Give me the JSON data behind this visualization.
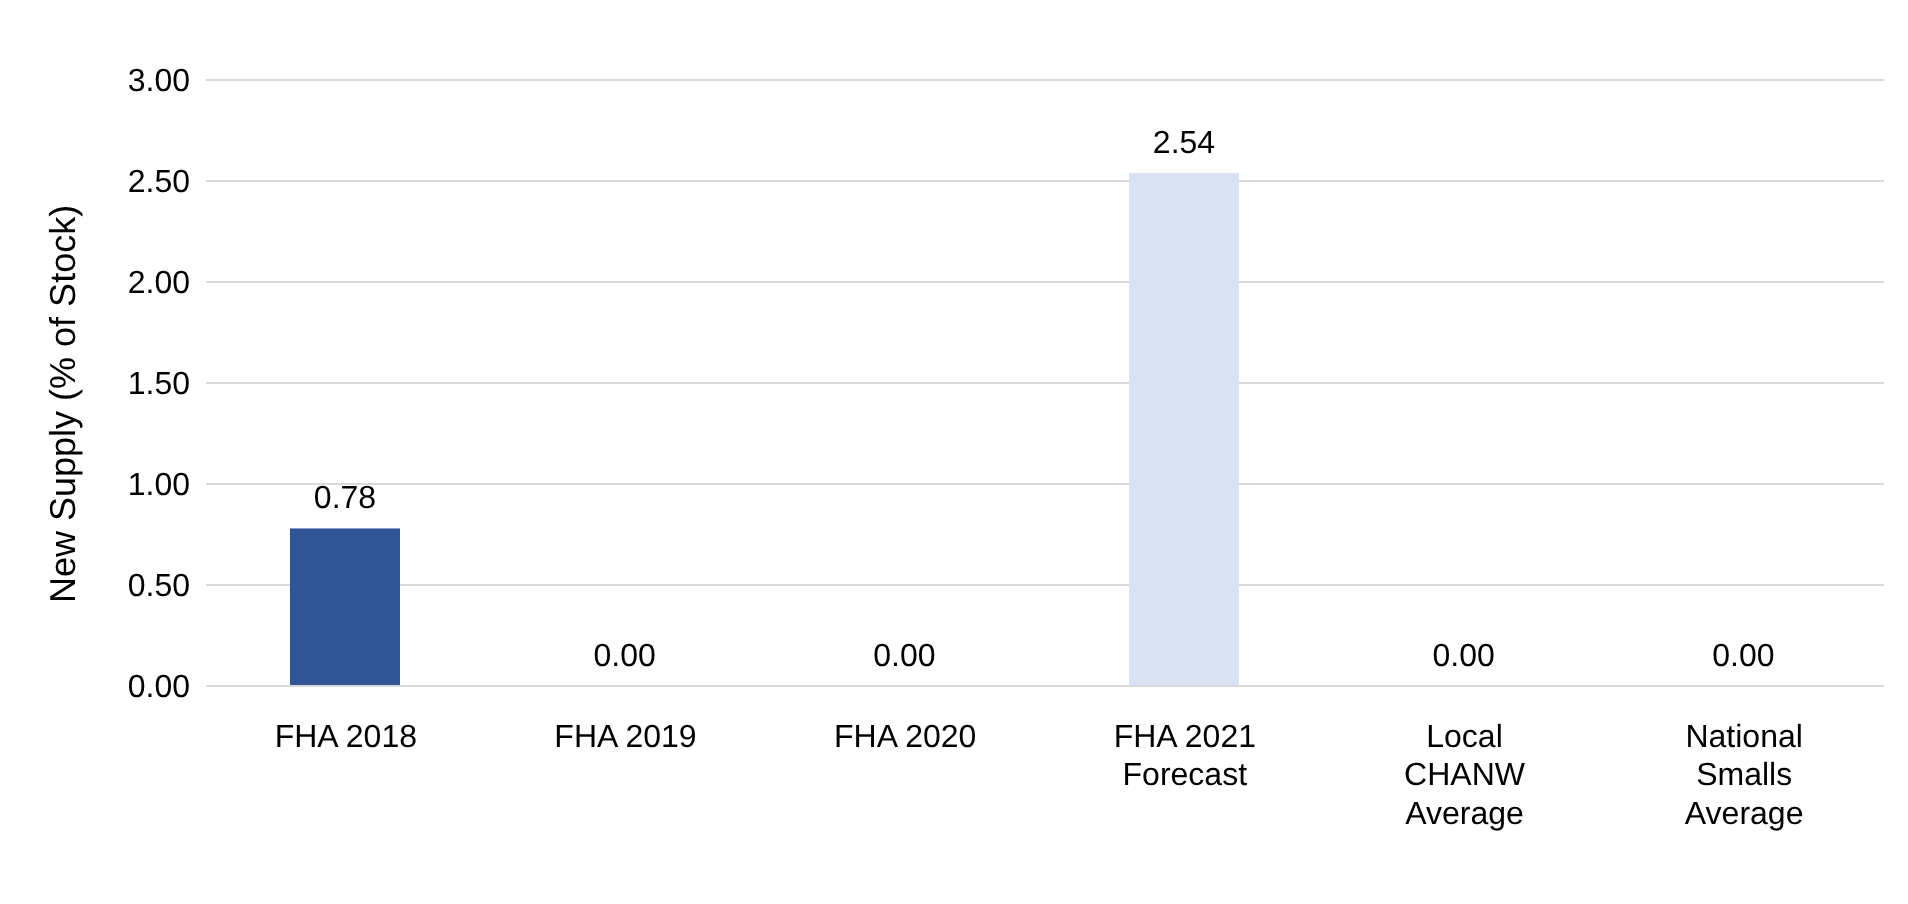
{
  "chart_data": {
    "type": "bar",
    "ylabel": "New Supply (% of Stock)",
    "categories": [
      "FHA 2018",
      "FHA 2019",
      "FHA 2020",
      "FHA 2021 Forecast",
      "Local CHANW Average",
      "National Smalls Average"
    ],
    "values": [
      0.78,
      0,
      0,
      2.54,
      0,
      0
    ],
    "colors": [
      "#2f5597",
      "#2f5597",
      "#2f5597",
      "#dae3f3",
      "#2f5597",
      "#2f5597"
    ],
    "value_labels": [
      "0.78",
      "0.00",
      "0.00",
      "2.54",
      "0.00",
      "0.00"
    ],
    "ylim": [
      0,
      3
    ],
    "yticks": [
      {
        "value": 0,
        "label": "0.00"
      },
      {
        "value": 0.5,
        "label": "0.50"
      },
      {
        "value": 1,
        "label": "1.00"
      },
      {
        "value": 1.5,
        "label": "1.50"
      },
      {
        "value": 2,
        "label": "2.00"
      },
      {
        "value": 2.5,
        "label": "2.50"
      },
      {
        "value": 3,
        "label": "3.00"
      }
    ],
    "grid": "y",
    "legend": false
  }
}
